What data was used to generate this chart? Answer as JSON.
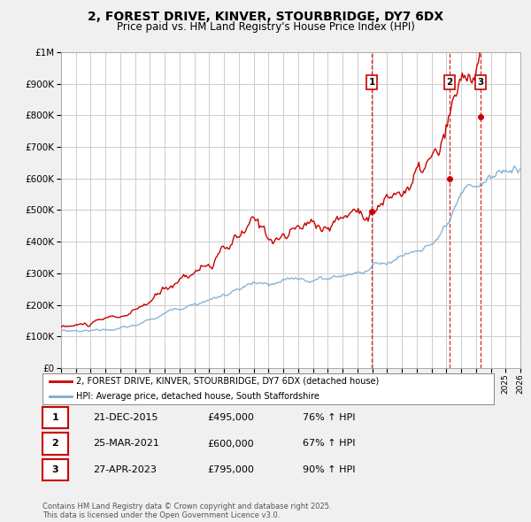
{
  "title": "2, FOREST DRIVE, KINVER, STOURBRIDGE, DY7 6DX",
  "subtitle": "Price paid vs. HM Land Registry's House Price Index (HPI)",
  "legend_line1": "2, FOREST DRIVE, KINVER, STOURBRIDGE, DY7 6DX (detached house)",
  "legend_line2": "HPI: Average price, detached house, South Staffordshire",
  "xmin": 1995,
  "xmax": 2026,
  "ymin": 0,
  "ymax": 1000000,
  "yticks": [
    0,
    100000,
    200000,
    300000,
    400000,
    500000,
    600000,
    700000,
    800000,
    900000,
    1000000
  ],
  "ytick_labels": [
    "£0",
    "£100K",
    "£200K",
    "£300K",
    "£400K",
    "£500K",
    "£600K",
    "£700K",
    "£800K",
    "£900K",
    "£1M"
  ],
  "line1_color": "#cc0000",
  "line2_color": "#7aadd4",
  "background_color": "#f0f0f0",
  "plot_bg_color": "#ffffff",
  "grid_color": "#cccccc",
  "sale_points": [
    {
      "year": 2015.97,
      "price": 495000,
      "label": "1"
    },
    {
      "year": 2021.23,
      "price": 600000,
      "label": "2"
    },
    {
      "year": 2023.32,
      "price": 795000,
      "label": "3"
    }
  ],
  "vline_color": "#cc0000",
  "table_data": [
    [
      "1",
      "21-DEC-2015",
      "£495,000",
      "76% ↑ HPI"
    ],
    [
      "2",
      "25-MAR-2021",
      "£600,000",
      "67% ↑ HPI"
    ],
    [
      "3",
      "27-APR-2023",
      "£795,000",
      "90% ↑ HPI"
    ]
  ],
  "footer": "Contains HM Land Registry data © Crown copyright and database right 2025.\nThis data is licensed under the Open Government Licence v3.0."
}
